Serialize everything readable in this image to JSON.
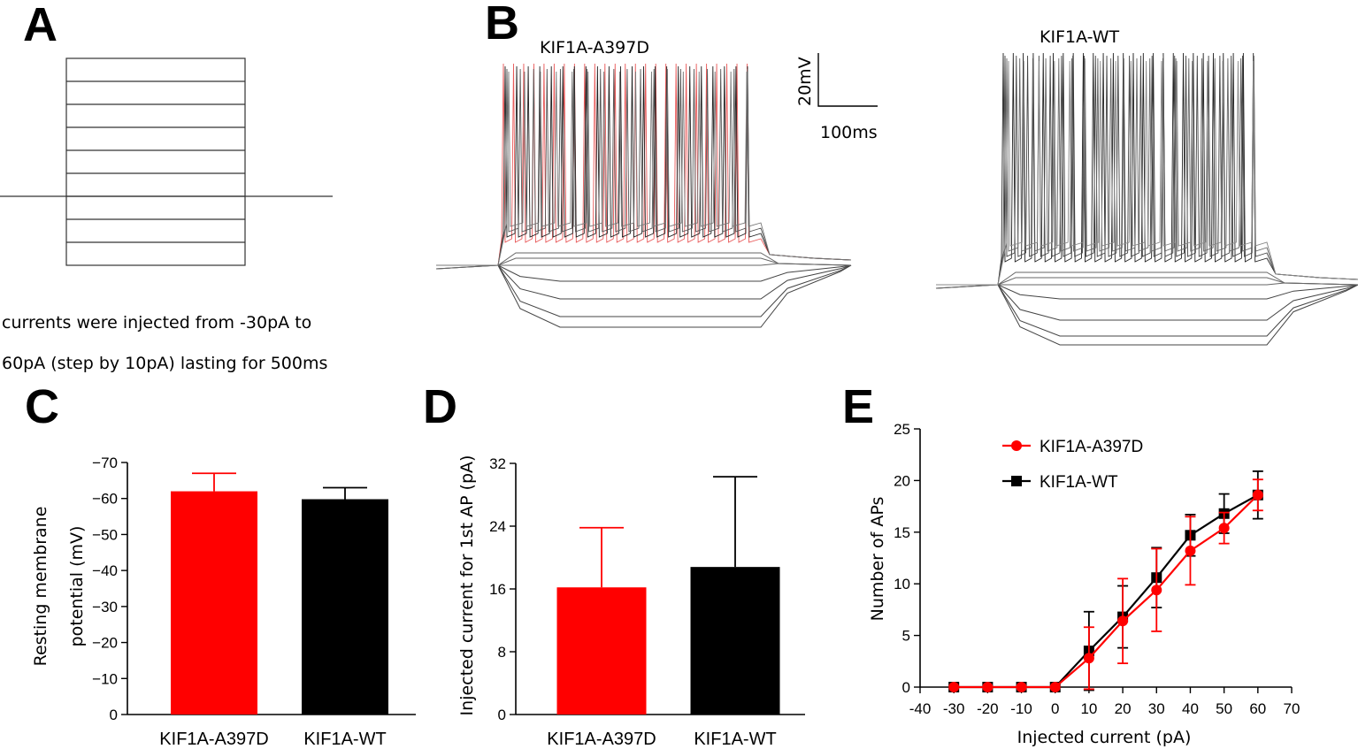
{
  "colors": {
    "mutant": "#ff0000",
    "wt": "#000000",
    "trace_mutant": "#e85a5a",
    "trace_gray": "#555555"
  },
  "panelA": {
    "letter": "A",
    "note_line1": "currents were injected from -30pA to",
    "note_line2": "60pA (step by 10pA) lasting for 500ms"
  },
  "panelB": {
    "letter": "B",
    "title_mutant": "KIF1A-A397D",
    "title_wt": "KIF1A-WT",
    "scale_voltage": "20mV",
    "scale_time": "100ms"
  },
  "chart_data": [
    {
      "id": "C",
      "type": "bar",
      "panel_letter": "C",
      "title": "",
      "ylabel_line1": "Resting membrane",
      "ylabel_line2": "potential (mV)",
      "categories": [
        "KIF1A-A397D",
        "KIF1A-WT"
      ],
      "values": [
        -62,
        -59.8
      ],
      "errors": [
        5,
        3.2
      ],
      "bar_colors": [
        "#ff0000",
        "#000000"
      ],
      "ylim": [
        0,
        -70
      ],
      "yticks": [
        0,
        -10,
        -20,
        -30,
        -40,
        -50,
        -60,
        -70
      ],
      "ytick_labels": [
        "0",
        "−10",
        "−20",
        "−30",
        "−40",
        "−50",
        "−60",
        "−70"
      ]
    },
    {
      "id": "D",
      "type": "bar",
      "panel_letter": "D",
      "title": "",
      "ylabel": "Injected current for 1st AP (pA)",
      "categories": [
        "KIF1A-A397D",
        "KIF1A-WT"
      ],
      "values": [
        16.2,
        18.8
      ],
      "errors": [
        7.6,
        11.5
      ],
      "bar_colors": [
        "#ff0000",
        "#000000"
      ],
      "ylim": [
        0,
        32
      ],
      "yticks": [
        0,
        8,
        16,
        24,
        32
      ],
      "ytick_labels": [
        "0",
        "8",
        "16",
        "24",
        "32"
      ]
    },
    {
      "id": "E",
      "type": "line",
      "panel_letter": "E",
      "title": "",
      "xlabel": "Injected current (pA)",
      "ylabel": "Number of APs",
      "xlim": [
        -40,
        70
      ],
      "ylim": [
        0,
        25
      ],
      "xticks": [
        -40,
        -30,
        -20,
        -10,
        0,
        10,
        20,
        30,
        40,
        50,
        60,
        70
      ],
      "xtick_labels": [
        "-40",
        "-30",
        "-20",
        "-10",
        "0",
        "10",
        "20",
        "30",
        "40",
        "50",
        "60",
        "70"
      ],
      "yticks": [
        0,
        5,
        10,
        15,
        20,
        25
      ],
      "ytick_labels": [
        "0",
        "5",
        "10",
        "15",
        "20",
        "25"
      ],
      "x": [
        -30,
        -20,
        -10,
        0,
        10,
        20,
        30,
        40,
        50,
        60
      ],
      "series": [
        {
          "name": "KIF1A-A397D",
          "color": "#ff0000",
          "marker": "circle",
          "values": [
            0,
            0,
            0,
            0,
            2.8,
            6.4,
            9.4,
            13.2,
            15.4,
            18.6
          ],
          "errors": [
            0,
            0,
            0,
            0,
            3,
            4.1,
            4,
            3.3,
            1.5,
            1.5
          ]
        },
        {
          "name": "KIF1A-WT",
          "color": "#000000",
          "marker": "square",
          "values": [
            0,
            0,
            0,
            0,
            3.5,
            6.8,
            10.6,
            14.7,
            16.8,
            18.6
          ],
          "errors": [
            0,
            0,
            0,
            0,
            3.8,
            3,
            2.9,
            2,
            1.9,
            2.3
          ]
        }
      ],
      "legend_position": "top-left"
    }
  ]
}
